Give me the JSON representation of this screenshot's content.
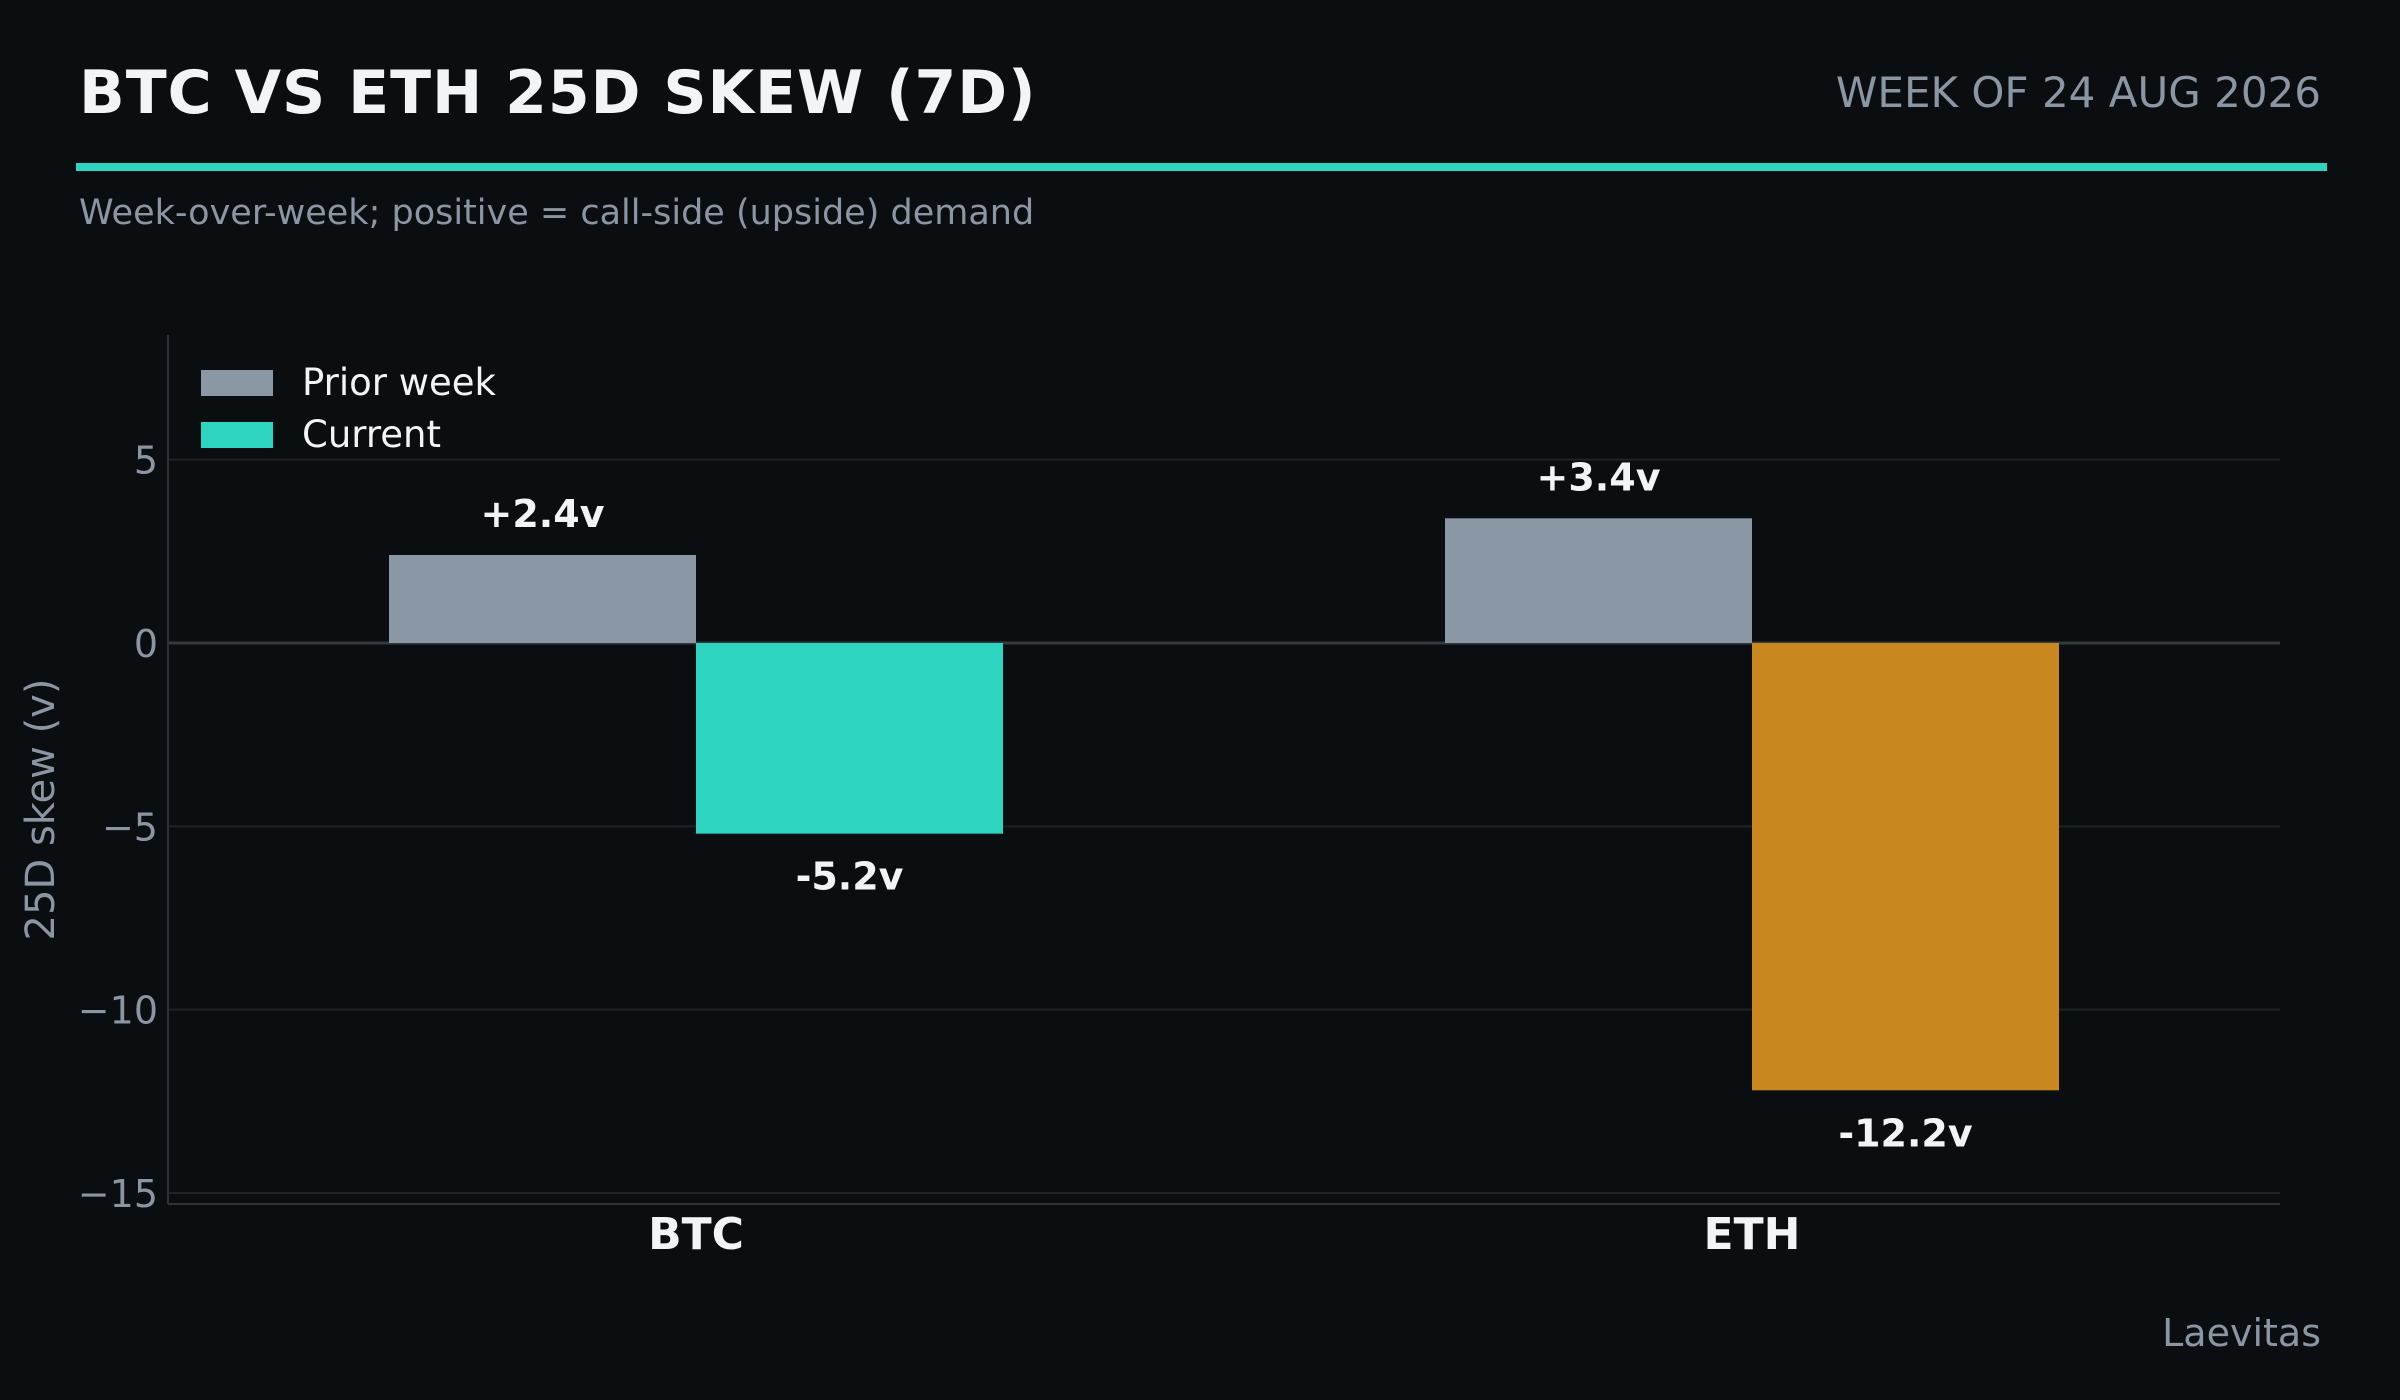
{
  "header": {
    "title": "BTC VS ETH 25D SKEW (7D)",
    "week": "WEEK OF 24 AUG 2026",
    "subtitle": "Week-over-week; positive = call-side (upside) demand"
  },
  "footer": {
    "source": "Laevitas"
  },
  "colors": {
    "background": "#0a0e11",
    "accent": "#2dd4bf",
    "prior": "#8a98a6",
    "current_btc": "#2dd4bf",
    "current_eth": "#c8871f",
    "text_muted": "#8b96a2"
  },
  "chart_data": {
    "type": "bar",
    "categories": [
      "BTC",
      "ETH"
    ],
    "series": [
      {
        "name": "Prior week",
        "values": [
          2.4,
          3.4
        ],
        "labels": [
          "+2.4v",
          "+3.4v"
        ],
        "colors": [
          "#8a98a6",
          "#8a98a6"
        ]
      },
      {
        "name": "Current",
        "values": [
          -5.2,
          -12.2
        ],
        "labels": [
          "-5.2v",
          "-12.2v"
        ],
        "colors": [
          "#2dd4bf",
          "#c8871f"
        ]
      }
    ],
    "ylabel": "25D skew (v)",
    "xlabel": "",
    "ylim": [
      -15.3,
      8.4
    ],
    "yticks": [
      5,
      0,
      -5,
      -10,
      -15
    ],
    "ytick_labels": [
      "5",
      "0",
      "−5",
      "−10",
      "−15"
    ],
    "legend": "top-left",
    "grid": "horizontal"
  }
}
